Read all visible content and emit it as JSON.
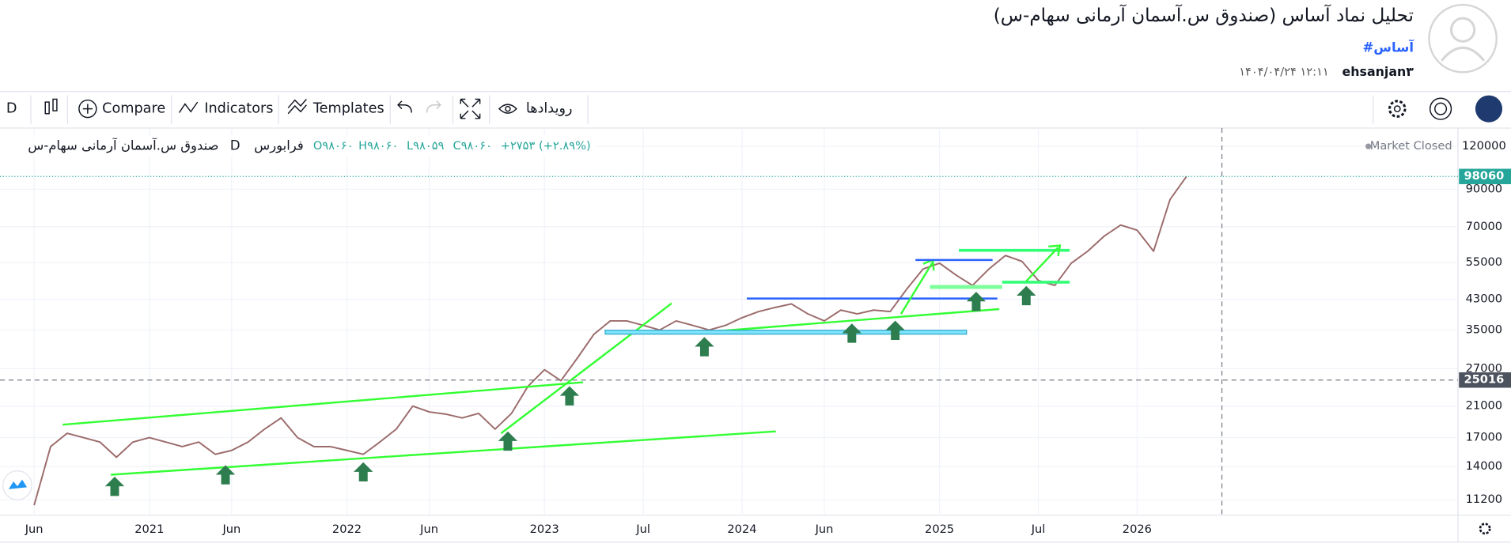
{
  "header": {
    "title": "تحلیل نماد آساس (صندوق س.آسمان آرمانی سهام-س)",
    "hashtag": "#آساس",
    "author": "ehsanjan۳",
    "date": "۱۴۰۴/۰۴/۲۴ ۱۲:۱۱"
  },
  "toolbar": {
    "interval": "D",
    "compare": "Compare",
    "indicators": "Indicators",
    "templates": "Templates",
    "events": "رویدادها"
  },
  "legend": {
    "symbol": "صندوق س.آسمان آرمانی سهام-س",
    "interval": "D",
    "exchange": "فرابورس",
    "open": "O۹۸۰۶۰",
    "high": "H۹۸۰۶۰",
    "low": "L۹۸۰۵۹",
    "close": "C۹۸۰۶۰",
    "change": "+۲۷۵۳ (+۲.۸۹%)",
    "status": "Market Closed"
  },
  "chart_data": {
    "type": "line",
    "log_scale": true,
    "grid": true,
    "x": [
      "2020-06",
      "2020-07",
      "2020-08",
      "2020-09",
      "2020-10",
      "2020-11",
      "2020-12",
      "2021-01",
      "2021-02",
      "2021-03",
      "2021-04",
      "2021-05",
      "2021-06",
      "2021-07",
      "2021-08",
      "2021-09",
      "2021-10",
      "2021-11",
      "2021-12",
      "2022-01",
      "2022-02",
      "2022-03",
      "2022-04",
      "2022-05",
      "2022-06",
      "2022-07",
      "2022-08",
      "2022-09",
      "2022-10",
      "2022-11",
      "2022-12",
      "2023-01",
      "2023-02",
      "2023-03",
      "2023-04",
      "2023-05",
      "2023-06",
      "2023-07",
      "2023-08",
      "2023-09",
      "2023-10",
      "2023-11",
      "2023-12",
      "2024-01",
      "2024-02",
      "2024-03",
      "2024-04",
      "2024-05",
      "2024-06",
      "2024-07",
      "2024-08",
      "2024-09",
      "2024-10",
      "2024-11",
      "2024-12",
      "2025-01",
      "2025-02",
      "2025-03",
      "2025-04",
      "2025-05",
      "2025-06",
      "2025-07",
      "2025-08",
      "2025-09",
      "2025-10",
      "2025-11",
      "2025-12",
      "2026-01",
      "2026-02",
      "2026-03",
      "2026-04"
    ],
    "series": [
      {
        "color": "#9c6b6b",
        "values": [
          10800,
          16000,
          17500,
          17000,
          16500,
          14900,
          16500,
          17000,
          16500,
          16000,
          16500,
          15200,
          15600,
          16500,
          18000,
          19400,
          17000,
          16000,
          16000,
          15600,
          15200,
          16500,
          18000,
          21000,
          20200,
          19900,
          19400,
          20000,
          18000,
          20000,
          24000,
          26800,
          24900,
          29000,
          34000,
          37200,
          37200,
          36100,
          35000,
          37200,
          36100,
          35000,
          36100,
          38000,
          39600,
          40700,
          41700,
          39000,
          37200,
          40000,
          39000,
          40000,
          39600,
          46000,
          52700,
          54800,
          50600,
          47200,
          52700,
          57700,
          55500,
          48800,
          47200,
          54800,
          59400,
          65700,
          70800,
          68400,
          59400,
          84000,
          98060
        ]
      }
    ],
    "ylim": [
      10100,
      135700
    ],
    "yticks": [
      11200,
      14000,
      17000,
      21000,
      27000,
      35000,
      43000,
      55000,
      70000,
      90000,
      120000
    ],
    "xticks": [
      {
        "value": "2020-06",
        "label": "Jun"
      },
      {
        "value": "2021-01",
        "label": "2021"
      },
      {
        "value": "2021-06",
        "label": "Jun"
      },
      {
        "value": "2022-01",
        "label": "2022"
      },
      {
        "value": "2022-06",
        "label": "Jun"
      },
      {
        "value": "2023-01",
        "label": "2023"
      },
      {
        "value": "2023-07",
        "label": "Jul"
      },
      {
        "value": "2024-01",
        "label": "2024"
      },
      {
        "value": "2024-06",
        "label": "Jun"
      },
      {
        "value": "2025-01",
        "label": "2025"
      },
      {
        "value": "2025-07",
        "label": "Jul"
      },
      {
        "value": "2026-01",
        "label": "2026"
      }
    ],
    "crosshair_price": 25016
  }
}
